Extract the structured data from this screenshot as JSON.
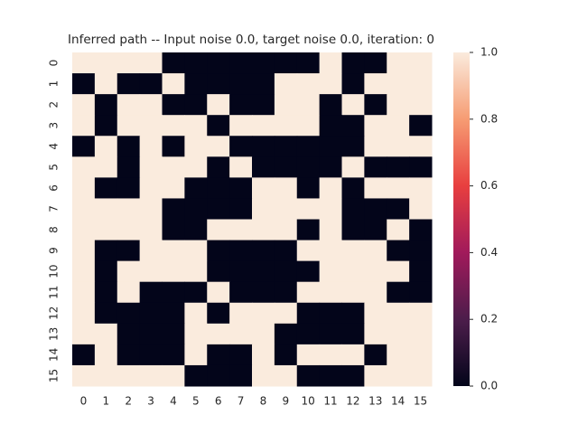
{
  "chart_data": {
    "type": "heatmap",
    "title": "Inferred path -- Input noise 0.0, target noise 0.0, iteration: 0",
    "x": [
      0,
      1,
      2,
      3,
      4,
      5,
      6,
      7,
      8,
      9,
      10,
      11,
      12,
      13,
      14,
      15
    ],
    "y": [
      0,
      1,
      2,
      3,
      4,
      5,
      6,
      7,
      8,
      9,
      10,
      11,
      12,
      13,
      14,
      15
    ],
    "values": [
      [
        1,
        1,
        1,
        1,
        0,
        0,
        0,
        0,
        0,
        0,
        0,
        1,
        0,
        0,
        1,
        1
      ],
      [
        0,
        1,
        0,
        0,
        1,
        0,
        0,
        0,
        0,
        1,
        1,
        1,
        0,
        1,
        1,
        1
      ],
      [
        1,
        0,
        1,
        1,
        0,
        0,
        1,
        0,
        0,
        1,
        1,
        0,
        1,
        0,
        1,
        1
      ],
      [
        1,
        0,
        1,
        1,
        1,
        1,
        0,
        1,
        1,
        1,
        1,
        0,
        0,
        1,
        1,
        0
      ],
      [
        0,
        1,
        0,
        1,
        0,
        1,
        1,
        0,
        0,
        0,
        0,
        0,
        0,
        1,
        1,
        1
      ],
      [
        1,
        1,
        0,
        1,
        1,
        1,
        0,
        1,
        0,
        0,
        0,
        0,
        1,
        0,
        0,
        0
      ],
      [
        1,
        0,
        0,
        1,
        1,
        0,
        0,
        0,
        1,
        1,
        0,
        1,
        0,
        1,
        1,
        1
      ],
      [
        1,
        1,
        1,
        1,
        0,
        0,
        0,
        0,
        1,
        1,
        1,
        1,
        0,
        0,
        0,
        1
      ],
      [
        1,
        1,
        1,
        1,
        0,
        0,
        1,
        1,
        1,
        1,
        0,
        1,
        0,
        0,
        1,
        0
      ],
      [
        1,
        0,
        0,
        1,
        1,
        1,
        0,
        0,
        0,
        0,
        1,
        1,
        1,
        1,
        0,
        0
      ],
      [
        1,
        0,
        1,
        1,
        1,
        1,
        0,
        0,
        0,
        0,
        0,
        1,
        1,
        1,
        1,
        0
      ],
      [
        1,
        0,
        1,
        0,
        0,
        0,
        1,
        0,
        0,
        0,
        1,
        1,
        1,
        1,
        0,
        0
      ],
      [
        1,
        0,
        0,
        0,
        0,
        1,
        0,
        1,
        1,
        1,
        0,
        0,
        0,
        1,
        1,
        1
      ],
      [
        1,
        1,
        0,
        0,
        0,
        1,
        1,
        1,
        1,
        0,
        0,
        0,
        0,
        1,
        1,
        1
      ],
      [
        0,
        1,
        0,
        0,
        0,
        1,
        0,
        0,
        1,
        0,
        1,
        1,
        1,
        0,
        1,
        1
      ],
      [
        1,
        1,
        1,
        1,
        1,
        0,
        0,
        0,
        1,
        1,
        0,
        0,
        0,
        1,
        1,
        1
      ]
    ],
    "colormap": [
      "#03051a",
      "#4c1d4b",
      "#a11a5b",
      "#e83f3f",
      "#f69c73",
      "#faebdd"
    ],
    "clim": [
      0,
      1
    ],
    "cticks": [
      {
        "value": 0,
        "label": "0.0"
      },
      {
        "value": 0.2,
        "label": "0.2"
      },
      {
        "value": 0.4,
        "label": "0.4"
      },
      {
        "value": 0.6,
        "label": "0.6"
      },
      {
        "value": 0.8,
        "label": "0.8"
      },
      {
        "value": 1,
        "label": "1.0"
      }
    ]
  }
}
